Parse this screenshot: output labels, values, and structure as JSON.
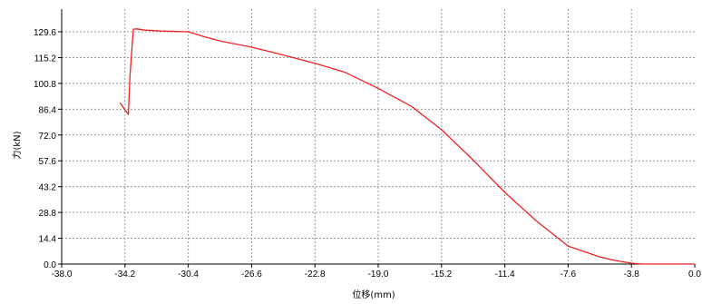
{
  "chart_data": {
    "type": "line",
    "title": "",
    "xlabel": "位移(mm)",
    "ylabel": "力(kN)",
    "xlim": [
      -38.0,
      0.0
    ],
    "ylim": [
      0.0,
      129.6
    ],
    "x_ticks": [
      "-38.0",
      "-34.2",
      "-30.4",
      "-26.6",
      "-22.8",
      "-19.0",
      "-15.2",
      "-11.4",
      "-7.6",
      "-3.8",
      "0.0"
    ],
    "y_ticks": [
      "0.0",
      "14.4",
      "28.8",
      "43.2",
      "57.6",
      "72.0",
      "86.4",
      "100.8",
      "115.2",
      "129.6"
    ],
    "grid": true,
    "legend": "none",
    "line_color": "#ee2222",
    "series": [
      {
        "x": [
          -34.5,
          -34.0,
          -33.9,
          -33.7,
          -33.5,
          -33.0,
          -32.0,
          -30.4,
          -29.5,
          -28.5,
          -26.6,
          -25.5,
          -22.8,
          -21.0,
          -19.0,
          -17.0,
          -15.2,
          -13.3,
          -11.4,
          -9.5,
          -7.6,
          -5.7,
          -4.8,
          -3.8,
          -3.4,
          -3.0,
          -2.5,
          0.0
        ],
        "y": [
          90.0,
          83.5,
          105.0,
          131.0,
          131.2,
          130.5,
          130.0,
          129.6,
          127.0,
          124.5,
          121.0,
          118.5,
          112.0,
          107.0,
          98.0,
          88.0,
          75.0,
          58.0,
          40.0,
          24.0,
          10.0,
          4.0,
          2.0,
          0.5,
          0.2,
          0.0,
          0.0,
          0.0
        ]
      }
    ]
  }
}
